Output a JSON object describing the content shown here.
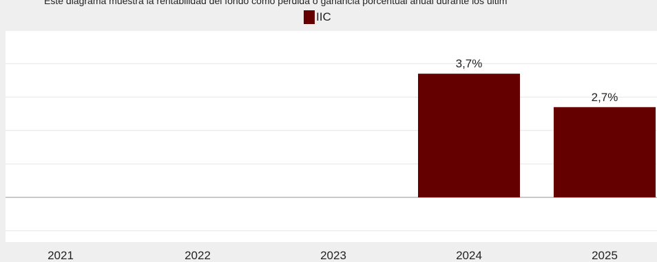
{
  "caption": "Este diagrama muestra la rentabilidad del fondo como pérdida o ganancia porcentual anual durante los últim",
  "chart_data": {
    "type": "bar",
    "categories": [
      "2021",
      "2022",
      "2023",
      "2024",
      "2025"
    ],
    "series": [
      {
        "name": "IIC",
        "color": "#640000",
        "values": [
          null,
          null,
          null,
          3.7,
          2.7
        ],
        "labels": [
          "",
          "",
          "",
          "3,7%",
          "2,7%"
        ]
      }
    ],
    "legend": {
      "position": "top-center"
    },
    "grid": true,
    "ylim": [
      -1,
      5
    ]
  }
}
